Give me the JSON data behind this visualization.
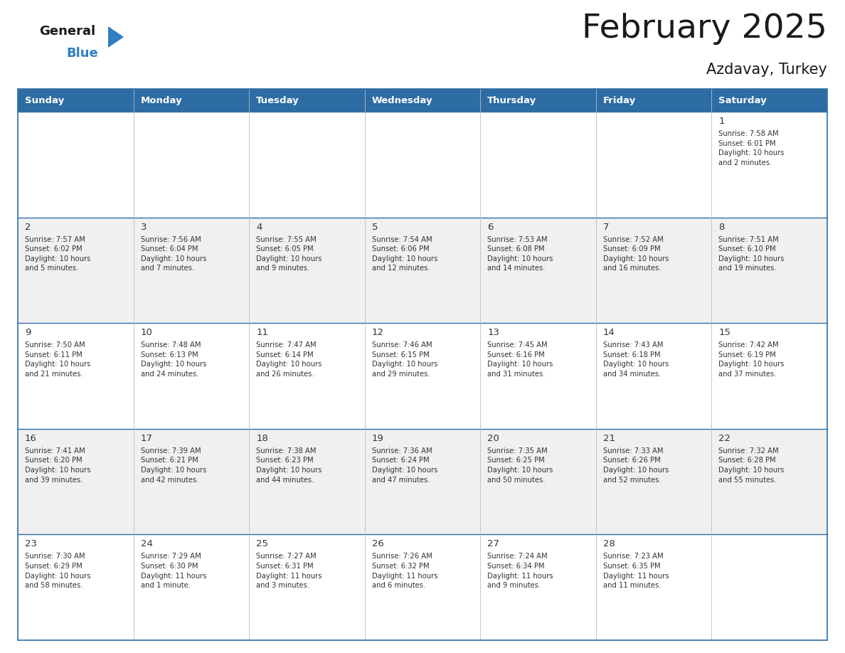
{
  "title": "February 2025",
  "subtitle": "Azdavay, Turkey",
  "header_bg_color": "#2E6DA4",
  "header_text_color": "#FFFFFF",
  "cell_bg_color": "#FFFFFF",
  "alt_cell_bg_color": "#F0F0F0",
  "border_color": "#2E6DA4",
  "text_color": "#333333",
  "days_of_week": [
    "Sunday",
    "Monday",
    "Tuesday",
    "Wednesday",
    "Thursday",
    "Friday",
    "Saturday"
  ],
  "calendar_data": [
    [
      {
        "day": "",
        "info": ""
      },
      {
        "day": "",
        "info": ""
      },
      {
        "day": "",
        "info": ""
      },
      {
        "day": "",
        "info": ""
      },
      {
        "day": "",
        "info": ""
      },
      {
        "day": "",
        "info": ""
      },
      {
        "day": "1",
        "info": "Sunrise: 7:58 AM\nSunset: 6:01 PM\nDaylight: 10 hours\nand 2 minutes."
      }
    ],
    [
      {
        "day": "2",
        "info": "Sunrise: 7:57 AM\nSunset: 6:02 PM\nDaylight: 10 hours\nand 5 minutes."
      },
      {
        "day": "3",
        "info": "Sunrise: 7:56 AM\nSunset: 6:04 PM\nDaylight: 10 hours\nand 7 minutes."
      },
      {
        "day": "4",
        "info": "Sunrise: 7:55 AM\nSunset: 6:05 PM\nDaylight: 10 hours\nand 9 minutes."
      },
      {
        "day": "5",
        "info": "Sunrise: 7:54 AM\nSunset: 6:06 PM\nDaylight: 10 hours\nand 12 minutes."
      },
      {
        "day": "6",
        "info": "Sunrise: 7:53 AM\nSunset: 6:08 PM\nDaylight: 10 hours\nand 14 minutes."
      },
      {
        "day": "7",
        "info": "Sunrise: 7:52 AM\nSunset: 6:09 PM\nDaylight: 10 hours\nand 16 minutes."
      },
      {
        "day": "8",
        "info": "Sunrise: 7:51 AM\nSunset: 6:10 PM\nDaylight: 10 hours\nand 19 minutes."
      }
    ],
    [
      {
        "day": "9",
        "info": "Sunrise: 7:50 AM\nSunset: 6:11 PM\nDaylight: 10 hours\nand 21 minutes."
      },
      {
        "day": "10",
        "info": "Sunrise: 7:48 AM\nSunset: 6:13 PM\nDaylight: 10 hours\nand 24 minutes."
      },
      {
        "day": "11",
        "info": "Sunrise: 7:47 AM\nSunset: 6:14 PM\nDaylight: 10 hours\nand 26 minutes."
      },
      {
        "day": "12",
        "info": "Sunrise: 7:46 AM\nSunset: 6:15 PM\nDaylight: 10 hours\nand 29 minutes."
      },
      {
        "day": "13",
        "info": "Sunrise: 7:45 AM\nSunset: 6:16 PM\nDaylight: 10 hours\nand 31 minutes."
      },
      {
        "day": "14",
        "info": "Sunrise: 7:43 AM\nSunset: 6:18 PM\nDaylight: 10 hours\nand 34 minutes."
      },
      {
        "day": "15",
        "info": "Sunrise: 7:42 AM\nSunset: 6:19 PM\nDaylight: 10 hours\nand 37 minutes."
      }
    ],
    [
      {
        "day": "16",
        "info": "Sunrise: 7:41 AM\nSunset: 6:20 PM\nDaylight: 10 hours\nand 39 minutes."
      },
      {
        "day": "17",
        "info": "Sunrise: 7:39 AM\nSunset: 6:21 PM\nDaylight: 10 hours\nand 42 minutes."
      },
      {
        "day": "18",
        "info": "Sunrise: 7:38 AM\nSunset: 6:23 PM\nDaylight: 10 hours\nand 44 minutes."
      },
      {
        "day": "19",
        "info": "Sunrise: 7:36 AM\nSunset: 6:24 PM\nDaylight: 10 hours\nand 47 minutes."
      },
      {
        "day": "20",
        "info": "Sunrise: 7:35 AM\nSunset: 6:25 PM\nDaylight: 10 hours\nand 50 minutes."
      },
      {
        "day": "21",
        "info": "Sunrise: 7:33 AM\nSunset: 6:26 PM\nDaylight: 10 hours\nand 52 minutes."
      },
      {
        "day": "22",
        "info": "Sunrise: 7:32 AM\nSunset: 6:28 PM\nDaylight: 10 hours\nand 55 minutes."
      }
    ],
    [
      {
        "day": "23",
        "info": "Sunrise: 7:30 AM\nSunset: 6:29 PM\nDaylight: 10 hours\nand 58 minutes."
      },
      {
        "day": "24",
        "info": "Sunrise: 7:29 AM\nSunset: 6:30 PM\nDaylight: 11 hours\nand 1 minute."
      },
      {
        "day": "25",
        "info": "Sunrise: 7:27 AM\nSunset: 6:31 PM\nDaylight: 11 hours\nand 3 minutes."
      },
      {
        "day": "26",
        "info": "Sunrise: 7:26 AM\nSunset: 6:32 PM\nDaylight: 11 hours\nand 6 minutes."
      },
      {
        "day": "27",
        "info": "Sunrise: 7:24 AM\nSunset: 6:34 PM\nDaylight: 11 hours\nand 9 minutes."
      },
      {
        "day": "28",
        "info": "Sunrise: 7:23 AM\nSunset: 6:35 PM\nDaylight: 11 hours\nand 11 minutes."
      },
      {
        "day": "",
        "info": ""
      }
    ]
  ],
  "logo_general_color": "#1a1a1a",
  "logo_blue_color": "#2E7EC2",
  "logo_triangle_color": "#2E7EC2",
  "fig_width": 11.88,
  "fig_height": 9.18,
  "dpi": 100
}
